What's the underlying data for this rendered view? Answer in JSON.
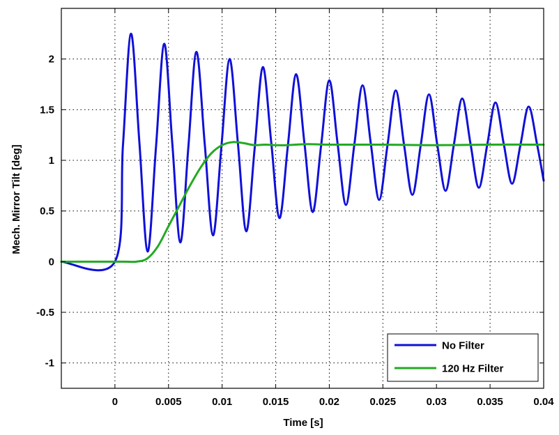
{
  "chart_data": {
    "type": "line",
    "title": "",
    "xlabel": "Time [s]",
    "ylabel": "Mech. Mirror Tilt [deg]",
    "xlim": [
      -0.005,
      0.04
    ],
    "ylim": [
      -1.25,
      2.5
    ],
    "x_ticks": [
      0,
      0.005,
      0.01,
      0.015,
      0.02,
      0.025,
      0.03,
      0.035,
      0.04
    ],
    "x_tick_labels": [
      "0",
      "0.005",
      "0.01",
      "0.015",
      "0.02",
      "0.025",
      "0.03",
      "0.035",
      "0.04"
    ],
    "y_ticks": [
      -1,
      -0.5,
      0,
      0.5,
      1,
      1.5,
      2
    ],
    "y_tick_labels": [
      "-1",
      "-0.5",
      "0",
      "0.5",
      "1",
      "1.5",
      "2"
    ],
    "grid": true,
    "grid_style": "dotted",
    "legend_position": "bottom-right",
    "series": [
      {
        "name": "No Filter",
        "color": "#1010d8",
        "x": [
          -0.005,
          0.0,
          0.00075,
          0.0015,
          0.00228,
          0.00305,
          0.00383,
          0.0046,
          0.00535,
          0.0061,
          0.00685,
          0.0076,
          0.00838,
          0.00915,
          0.00993,
          0.0107,
          0.01148,
          0.01225,
          0.01303,
          0.0138,
          0.01458,
          0.01535,
          0.01613,
          0.0169,
          0.01768,
          0.01845,
          0.01923,
          0.02,
          0.02078,
          0.02155,
          0.02233,
          0.0231,
          0.02388,
          0.02465,
          0.02543,
          0.0262,
          0.02698,
          0.02775,
          0.02853,
          0.0293,
          0.03008,
          0.03085,
          0.03163,
          0.0324,
          0.03318,
          0.03395,
          0.03473,
          0.0355,
          0.03628,
          0.03705,
          0.03783,
          0.0386,
          0.03938,
          0.04
        ],
        "y": [
          0,
          0,
          1.15,
          2.25,
          1.18,
          0.1,
          1.13,
          2.15,
          1.17,
          0.19,
          1.13,
          2.07,
          1.16,
          0.26,
          1.13,
          2.0,
          1.16,
          0.3,
          1.11,
          1.92,
          1.18,
          0.43,
          1.14,
          1.85,
          1.17,
          0.49,
          1.14,
          1.79,
          1.16,
          0.56,
          1.15,
          1.74,
          1.16,
          0.61,
          1.15,
          1.69,
          1.15,
          0.66,
          1.15,
          1.65,
          1.15,
          0.7,
          1.16,
          1.61,
          1.16,
          0.73,
          1.15,
          1.57,
          1.16,
          0.77,
          1.15,
          1.53,
          1.16,
          0.8
        ]
      },
      {
        "name": "120 Hz Filter",
        "color": "#22aa22",
        "x": [
          -0.005,
          0.0,
          0.001,
          0.002,
          0.003,
          0.004,
          0.005,
          0.006,
          0.007,
          0.008,
          0.009,
          0.01,
          0.011,
          0.012,
          0.013,
          0.014,
          0.015,
          0.016,
          0.018,
          0.02,
          0.025,
          0.03,
          0.035,
          0.04
        ],
        "y": [
          0,
          0,
          0,
          0.0,
          0.03,
          0.15,
          0.35,
          0.55,
          0.75,
          0.93,
          1.07,
          1.15,
          1.18,
          1.17,
          1.15,
          1.155,
          1.15,
          1.15,
          1.16,
          1.155,
          1.155,
          1.15,
          1.155,
          1.155
        ]
      }
    ]
  }
}
